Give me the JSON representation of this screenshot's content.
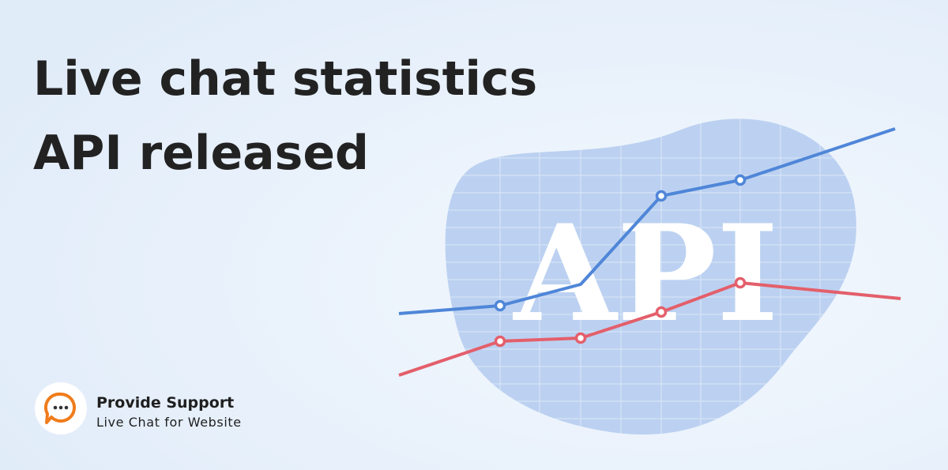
{
  "header": {
    "title": [
      "Live chat statistics",
      "API released"
    ]
  },
  "illustration": {
    "label": "API"
  },
  "brand": {
    "name": "Provide Support",
    "tagline": "Live Chat for Website"
  }
}
